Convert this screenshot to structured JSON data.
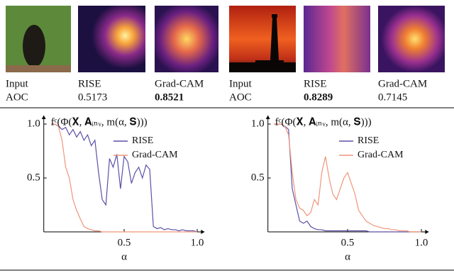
{
  "top_row": {
    "columns": [
      [
        "Input",
        "AOC"
      ],
      [
        "RISE",
        "0.5173"
      ],
      [
        "Grad-CAM",
        "0.8521"
      ],
      [
        "Input",
        "AOC"
      ],
      [
        "RISE",
        "0.8289"
      ],
      [
        "Grad-CAM",
        "0.7145"
      ]
    ]
  },
  "chart_data": [
    {
      "type": "line",
      "title": "fᶜ(Φ(𝐗, 𝐀ᵢₙᵥ, m(α, 𝐒)))",
      "x_label": "α",
      "xlim": [
        -0.05,
        1.05
      ],
      "ylim": [
        0,
        1.08
      ],
      "xticks": [
        0.5,
        {
          "value": 1,
          "label": "1.0"
        }
      ],
      "yticks": [
        0.5,
        {
          "value": 1,
          "label": "1.0"
        }
      ],
      "x": [
        0,
        0.025,
        0.05,
        0.075,
        0.1,
        0.125,
        0.15,
        0.175,
        0.2,
        0.225,
        0.25,
        0.275,
        0.3,
        0.325,
        0.35,
        0.375,
        0.4,
        0.425,
        0.45,
        0.475,
        0.5,
        0.525,
        0.55,
        0.575,
        0.6,
        0.625,
        0.65,
        0.675,
        0.7,
        0.725,
        0.75,
        0.775,
        0.8,
        0.825,
        0.85,
        0.875,
        0.9,
        0.925,
        0.95,
        0.975,
        1
      ],
      "series": [
        {
          "name": "RISE",
          "color": "#5a50a8",
          "values": [
            1,
            1,
            0.98,
            0.95,
            0.97,
            0.9,
            0.95,
            0.88,
            0.93,
            0.85,
            0.9,
            0.8,
            0.85,
            0.55,
            0.3,
            0.25,
            0.68,
            0.6,
            0.72,
            0.4,
            0.7,
            0.65,
            0.45,
            0.55,
            0.6,
            0.5,
            0.62,
            0.58,
            0.05,
            0.03,
            0.04,
            0.02,
            0.03,
            0.02,
            0.02,
            0.01,
            0.02,
            0.01,
            0.01,
            0.01,
            0
          ]
        },
        {
          "name": "Grad-CAM",
          "color": "#f0957a",
          "values": [
            1,
            1,
            0.98,
            0.85,
            0.6,
            0.5,
            0.3,
            0.2,
            0.12,
            0.05,
            0.03,
            0.02,
            0.01,
            0.01,
            0,
            0,
            0,
            0,
            0,
            0,
            0,
            0,
            0,
            0,
            0,
            0,
            0,
            0,
            0,
            0,
            0,
            0,
            0,
            0,
            0,
            0,
            0,
            0,
            0,
            0,
            0
          ]
        }
      ]
    },
    {
      "type": "line",
      "title": "fᶜ(Φ(𝐗, 𝐀ᵢₙᵥ, m(α, 𝐒)))",
      "x_label": "α",
      "xlim": [
        -0.04,
        1.05
      ],
      "ylim": [
        0,
        1.08
      ],
      "xticks": [
        0.5,
        {
          "value": 1,
          "label": "1.0"
        }
      ],
      "yticks": [
        0.5,
        {
          "value": 1,
          "label": "1.0"
        }
      ],
      "x": [
        0,
        0.025,
        0.05,
        0.075,
        0.1,
        0.125,
        0.15,
        0.175,
        0.2,
        0.225,
        0.25,
        0.275,
        0.3,
        0.325,
        0.35,
        0.375,
        0.4,
        0.425,
        0.45,
        0.475,
        0.5,
        0.525,
        0.55,
        0.575,
        0.6,
        0.625,
        0.65,
        0.675,
        0.7,
        0.725,
        0.75,
        0.775,
        0.8,
        0.825,
        0.85,
        0.875,
        0.9,
        0.925,
        0.95,
        0.975,
        1
      ],
      "series": [
        {
          "name": "RISE",
          "color": "#5a50a8",
          "values": [
            1,
            1,
            1,
            0.98,
            0.95,
            0.4,
            0.25,
            0.1,
            0.08,
            0.1,
            0.05,
            0.03,
            0.02,
            0.02,
            0.01,
            0.01,
            0.01,
            0.01,
            0.01,
            0.01,
            0.01,
            0.01,
            0.01,
            0.01,
            0.01,
            0.01,
            0,
            0,
            0,
            0,
            0,
            0,
            0,
            0,
            0,
            0,
            0,
            0,
            0,
            0,
            0
          ]
        },
        {
          "name": "Grad-CAM",
          "color": "#f0957a",
          "values": [
            1,
            1,
            1,
            0.98,
            0.9,
            0.55,
            0.3,
            0.22,
            0.2,
            0.15,
            0.18,
            0.3,
            0.25,
            0.55,
            0.7,
            0.5,
            0.35,
            0.3,
            0.4,
            0.5,
            0.55,
            0.45,
            0.35,
            0.2,
            0.15,
            0.1,
            0.08,
            0.06,
            0.05,
            0.04,
            0.03,
            0.03,
            0.02,
            0.02,
            0.01,
            0.01,
            0.01,
            0,
            0,
            0,
            0
          ]
        }
      ]
    }
  ]
}
